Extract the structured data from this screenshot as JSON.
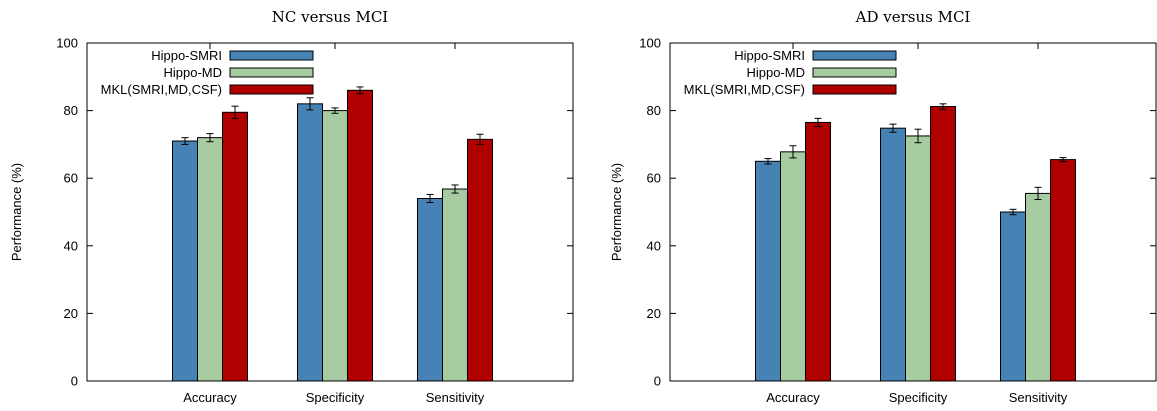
{
  "chart_data": [
    {
      "type": "bar",
      "title": "NC versus MCI",
      "ylabel": "Performance (%)",
      "xlabel": "",
      "ylim": [
        0,
        100
      ],
      "yticks": [
        0,
        20,
        40,
        60,
        80,
        100
      ],
      "categories": [
        "Accuracy",
        "Specificity",
        "Sensitivity"
      ],
      "legend_position": "top-left",
      "grid": false,
      "series": [
        {
          "name": "Hippo-SMRI",
          "color": "#4682b4",
          "values": [
            71.0,
            82.0,
            54.0
          ],
          "errors": [
            1.0,
            1.8,
            1.2
          ]
        },
        {
          "name": "Hippo-MD",
          "color": "#a8cca2",
          "values": [
            72.0,
            80.0,
            56.8
          ],
          "errors": [
            1.2,
            0.8,
            1.2
          ]
        },
        {
          "name": "MKL(SMRI,MD,CSF)",
          "color": "#b00000",
          "values": [
            79.5,
            86.0,
            71.5
          ],
          "errors": [
            1.8,
            1.0,
            1.5
          ]
        }
      ]
    },
    {
      "type": "bar",
      "title": "AD versus MCI",
      "ylabel": "Performance (%)",
      "xlabel": "",
      "ylim": [
        0,
        100
      ],
      "yticks": [
        0,
        20,
        40,
        60,
        80,
        100
      ],
      "categories": [
        "Accuracy",
        "Specificity",
        "Sensitivity"
      ],
      "legend_position": "top-left",
      "grid": false,
      "series": [
        {
          "name": "Hippo-SMRI",
          "color": "#4682b4",
          "values": [
            65.0,
            74.8,
            50.0
          ],
          "errors": [
            0.8,
            1.2,
            0.8
          ]
        },
        {
          "name": "Hippo-MD",
          "color": "#a8cca2",
          "values": [
            67.8,
            72.5,
            55.5
          ],
          "errors": [
            1.8,
            2.0,
            1.8
          ]
        },
        {
          "name": "MKL(SMRI,MD,CSF)",
          "color": "#b00000",
          "values": [
            76.5,
            81.2,
            65.5
          ],
          "errors": [
            1.2,
            0.8,
            0.6
          ]
        }
      ]
    }
  ]
}
